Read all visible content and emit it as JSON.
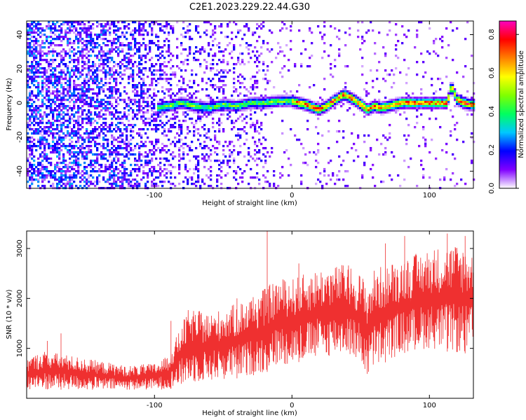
{
  "title": "C2E1.2023.229.22.44.G30",
  "chart_data": [
    {
      "type": "heatmap",
      "xlabel": "Height of straight line (km)",
      "ylabel": "Frequency (Hz)",
      "xlim": [
        -193,
        132
      ],
      "ylim": [
        -50,
        48
      ],
      "xticks": [
        -100,
        0,
        100
      ],
      "yticks": [
        -40,
        -20,
        0,
        20,
        40
      ],
      "grid": false,
      "colorbar": {
        "label": "Normalized spectral amplitude",
        "range": [
          0.0,
          0.87
        ],
        "ticks": [
          0.0,
          0.2,
          0.4,
          0.6,
          0.8
        ],
        "colormap": [
          "#ffffff",
          "#8000ff",
          "#0000ff",
          "#00c8ff",
          "#00ff60",
          "#80ff00",
          "#ffff00",
          "#ff8000",
          "#ff0000",
          "#ff00c0"
        ]
      },
      "signal_ridge": {
        "x": [
          -98,
          -90,
          -80,
          -70,
          -60,
          -50,
          -40,
          -30,
          -20,
          -10,
          0,
          10,
          20,
          25,
          30,
          38,
          45,
          52,
          55,
          60,
          65,
          70,
          80,
          90,
          100,
          110,
          113,
          116,
          120,
          125,
          130
        ],
        "y": [
          -3,
          -2,
          0,
          -2,
          -3,
          -1,
          -2,
          0,
          0,
          1,
          1,
          -1,
          -4,
          -2,
          1,
          5,
          2,
          -2,
          -4,
          -2,
          -3,
          -2,
          0,
          0,
          0,
          0,
          0,
          10,
          2,
          0,
          -1
        ]
      },
      "noise_level_by_x": {
        "x": [
          -193,
          -150,
          -120,
          -100,
          -80,
          -50,
          -20,
          -19,
          0,
          60,
          132
        ],
        "level": [
          1.0,
          0.95,
          0.8,
          0.6,
          0.45,
          0.38,
          0.33,
          0.12,
          0.1,
          0.1,
          0.08
        ]
      }
    },
    {
      "type": "line",
      "xlabel": "Height of straight line (km)",
      "ylabel": "SNR (10 * v/v)",
      "xlim": [
        -193,
        132
      ],
      "ylim": [
        0,
        3350
      ],
      "xticks": [
        -100,
        0,
        100
      ],
      "yticks": [
        1000,
        2000,
        3000
      ],
      "grid": false,
      "series": [
        {
          "color": "#ef3030",
          "envelope": {
            "x": [
              -193,
              -180,
              -160,
              -140,
              -120,
              -100,
              -90,
              -80,
              -75,
              -60,
              -40,
              -20,
              -10,
              0,
              20,
              40,
              50,
              55,
              60,
              80,
              100,
              120,
              132
            ],
            "low": [
              150,
              180,
              170,
              160,
              170,
              170,
              180,
              250,
              300,
              350,
              400,
              500,
              650,
              700,
              800,
              900,
              700,
              400,
              600,
              900,
              1000,
              900,
              900
            ],
            "high": [
              800,
              950,
              850,
              750,
              650,
              700,
              850,
              1500,
              1800,
              1700,
              1900,
              2200,
              2400,
              2400,
              2600,
              2700,
              2500,
              2300,
              2600,
              2800,
              3000,
              3100,
              3000
            ]
          },
          "spikes": [
            {
              "x": -178,
              "y": 1150
            },
            {
              "x": -168,
              "y": 1300
            },
            {
              "x": -88,
              "y": 1550
            },
            {
              "x": -40,
              "y": 2000
            },
            {
              "x": -18,
              "y": 3350
            },
            {
              "x": 5,
              "y": 2700
            },
            {
              "x": 68,
              "y": 3100
            },
            {
              "x": 82,
              "y": 3250
            },
            {
              "x": 113,
              "y": 3300
            },
            {
              "x": 126,
              "y": 3250
            }
          ]
        }
      ]
    }
  ]
}
